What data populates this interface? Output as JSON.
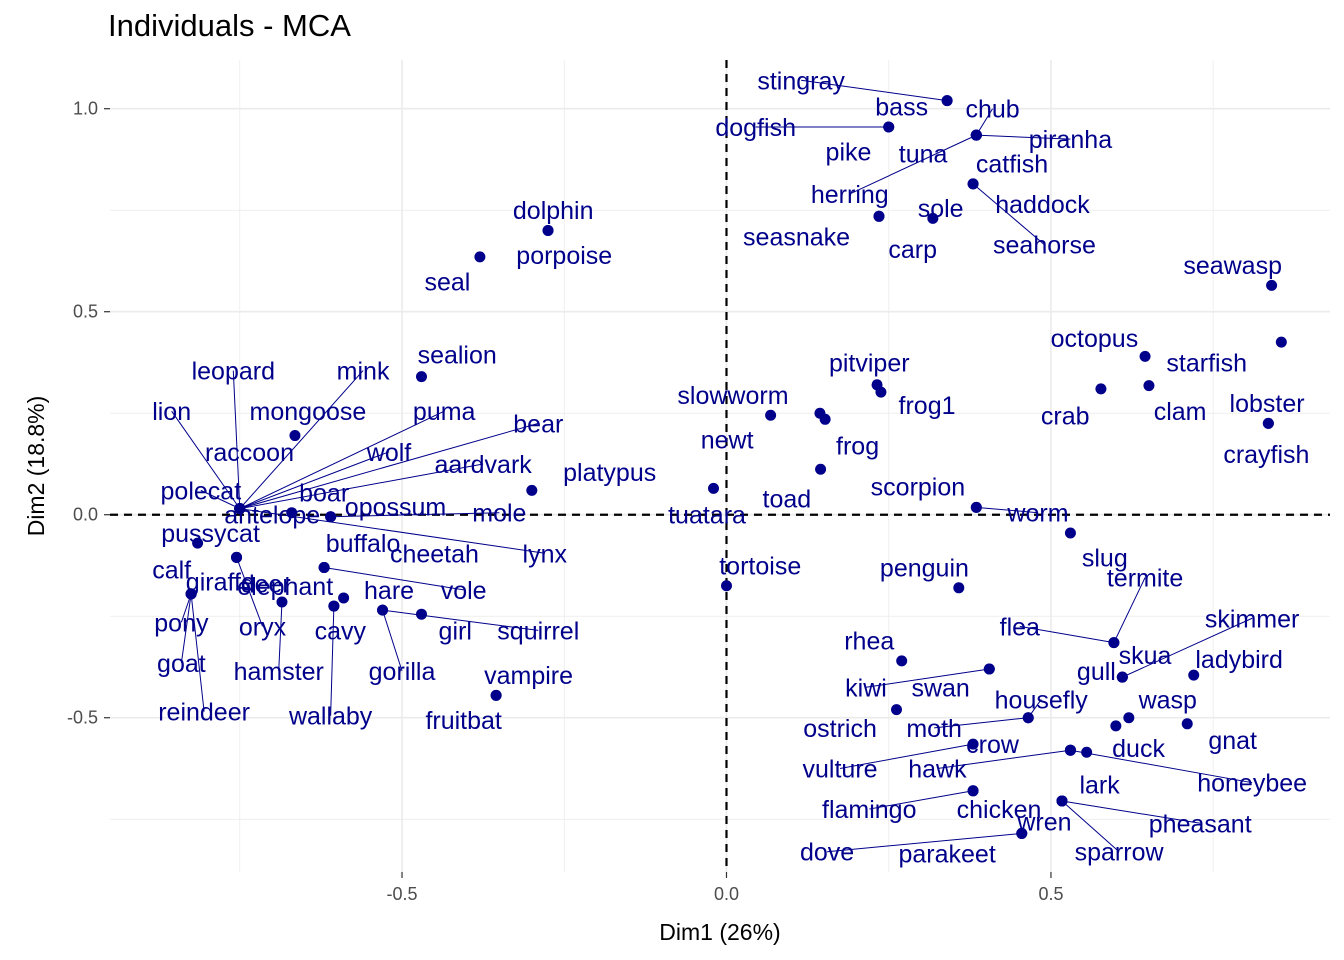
{
  "title": "Individuals - MCA",
  "colors": {
    "points": "#00008B",
    "grid": "#EBEBEB",
    "zero_line": "#000000",
    "tick_text": "#4D4D4D"
  },
  "chart_data": {
    "type": "scatter",
    "title": "Individuals - MCA",
    "xlabel": "Dim1 (26%)",
    "ylabel": "Dim2 (18.8%)",
    "xlim": [
      -0.95,
      0.93
    ],
    "ylim": [
      -0.88,
      1.12
    ],
    "x_ticks": [
      -0.5,
      0.0,
      0.5
    ],
    "x_tick_labels": [
      "-0.5",
      "0.0",
      "0.5"
    ],
    "y_ticks": [
      -0.5,
      0.0,
      0.5,
      1.0
    ],
    "y_tick_labels": [
      "-0.5",
      "0.0",
      "0.5",
      "1.0"
    ],
    "grid": true,
    "reference_lines": [
      0,
      0
    ],
    "points": [
      {
        "label": "stingray",
        "x": 0.34,
        "y": 1.02,
        "lx": 0.115,
        "ly": 1.07,
        "line": true
      },
      {
        "label": "bass",
        "x": 0.34,
        "y": 1.02,
        "lx": 0.27,
        "ly": 1.005,
        "line": false
      },
      {
        "label": "chub",
        "x": 0.385,
        "y": 0.935,
        "lx": 0.41,
        "ly": 1.0,
        "line": true
      },
      {
        "label": "piranha",
        "x": 0.385,
        "y": 0.935,
        "lx": 0.53,
        "ly": 0.925,
        "line": true
      },
      {
        "label": "dogfish",
        "x": 0.25,
        "y": 0.955,
        "lx": 0.045,
        "ly": 0.955,
        "line": true
      },
      {
        "label": "pike",
        "x": 0.25,
        "y": 0.955,
        "lx": 0.188,
        "ly": 0.895,
        "line": false
      },
      {
        "label": "tuna",
        "x": 0.385,
        "y": 0.935,
        "lx": 0.303,
        "ly": 0.89,
        "line": false
      },
      {
        "label": "catfish",
        "x": 0.385,
        "y": 0.935,
        "lx": 0.44,
        "ly": 0.865,
        "line": false
      },
      {
        "label": "herring",
        "x": 0.385,
        "y": 0.935,
        "lx": 0.19,
        "ly": 0.79,
        "line": true
      },
      {
        "label": "haddock",
        "x": 0.38,
        "y": 0.815,
        "lx": 0.487,
        "ly": 0.765,
        "line": false
      },
      {
        "label": "sole",
        "x": 0.318,
        "y": 0.73,
        "lx": 0.33,
        "ly": 0.755,
        "line": false
      },
      {
        "label": "seahorse",
        "x": 0.38,
        "y": 0.815,
        "lx": 0.49,
        "ly": 0.665,
        "line": true
      },
      {
        "label": "seasnake",
        "x": 0.235,
        "y": 0.735,
        "lx": 0.108,
        "ly": 0.685,
        "line": false
      },
      {
        "label": "carp",
        "x": 0.235,
        "y": 0.735,
        "lx": 0.287,
        "ly": 0.655,
        "line": false
      },
      {
        "label": "dolphin",
        "x": -0.275,
        "y": 0.7,
        "lx": -0.267,
        "ly": 0.75,
        "line": false
      },
      {
        "label": "porpoise",
        "x": -0.275,
        "y": 0.7,
        "lx": -0.25,
        "ly": 0.64,
        "line": false
      },
      {
        "label": "seal",
        "x": -0.38,
        "y": 0.635,
        "lx": -0.43,
        "ly": 0.575,
        "line": false
      },
      {
        "label": "seawasp",
        "x": 0.84,
        "y": 0.565,
        "lx": 0.78,
        "ly": 0.615,
        "line": false
      },
      {
        "label": "octopus",
        "x": 0.645,
        "y": 0.39,
        "lx": 0.567,
        "ly": 0.435,
        "line": false
      },
      {
        "label": "starfish",
        "x": 0.855,
        "y": 0.425,
        "lx": 0.74,
        "ly": 0.375,
        "line": false
      },
      {
        "label": "crab",
        "x": 0.577,
        "y": 0.31,
        "lx": 0.522,
        "ly": 0.245,
        "line": false
      },
      {
        "label": "clam",
        "x": 0.651,
        "y": 0.318,
        "lx": 0.699,
        "ly": 0.255,
        "line": false
      },
      {
        "label": "lobster",
        "x": 0.835,
        "y": 0.225,
        "lx": 0.833,
        "ly": 0.275,
        "line": false
      },
      {
        "label": "crayfish",
        "x": 0.835,
        "y": 0.225,
        "lx": 0.832,
        "ly": 0.15,
        "line": false
      },
      {
        "label": "pitviper",
        "x": 0.232,
        "y": 0.32,
        "lx": 0.22,
        "ly": 0.375,
        "line": false
      },
      {
        "label": "frog1",
        "x": 0.238,
        "y": 0.302,
        "lx": 0.309,
        "ly": 0.27,
        "line": false
      },
      {
        "label": "slowworm",
        "x": 0.068,
        "y": 0.245,
        "lx": 0.01,
        "ly": 0.295,
        "line": false
      },
      {
        "label": "newt",
        "x": 0.144,
        "y": 0.25,
        "lx": 0.001,
        "ly": 0.185,
        "line": false
      },
      {
        "label": "frog",
        "x": 0.152,
        "y": 0.235,
        "lx": 0.202,
        "ly": 0.17,
        "line": false
      },
      {
        "label": "toad",
        "x": 0.145,
        "y": 0.112,
        "lx": 0.093,
        "ly": 0.04,
        "line": false
      },
      {
        "label": "scorpion",
        "x": 0.385,
        "y": 0.018,
        "lx": 0.295,
        "ly": 0.07,
        "line": false
      },
      {
        "label": "worm",
        "x": 0.385,
        "y": 0.018,
        "lx": 0.48,
        "ly": 0.005,
        "line": true
      },
      {
        "label": "slug",
        "x": 0.53,
        "y": -0.045,
        "lx": 0.583,
        "ly": -0.105,
        "line": false
      },
      {
        "label": "tuatara",
        "x": -0.02,
        "y": 0.065,
        "lx": -0.03,
        "ly": -0.0,
        "line": false
      },
      {
        "label": "tortoise",
        "x": 0.0,
        "y": -0.175,
        "lx": 0.052,
        "ly": -0.125,
        "line": false
      },
      {
        "label": "penguin",
        "x": 0.358,
        "y": -0.18,
        "lx": 0.305,
        "ly": -0.13,
        "line": false
      },
      {
        "label": "platypus",
        "x": -0.3,
        "y": 0.06,
        "lx": -0.18,
        "ly": 0.105,
        "line": false
      },
      {
        "label": "sealion",
        "x": -0.47,
        "y": 0.34,
        "lx": -0.415,
        "ly": 0.395,
        "line": false
      },
      {
        "label": "leopard",
        "x": -0.75,
        "y": 0.015,
        "lx": -0.76,
        "ly": 0.355,
        "line": true
      },
      {
        "label": "mink",
        "x": -0.75,
        "y": 0.015,
        "lx": -0.56,
        "ly": 0.355,
        "line": true
      },
      {
        "label": "lion",
        "x": -0.75,
        "y": 0.015,
        "lx": -0.855,
        "ly": 0.255,
        "line": true
      },
      {
        "label": "mongoose",
        "x": -0.665,
        "y": 0.195,
        "lx": -0.645,
        "ly": 0.255,
        "line": false
      },
      {
        "label": "puma",
        "x": -0.75,
        "y": 0.015,
        "lx": -0.435,
        "ly": 0.255,
        "line": true
      },
      {
        "label": "bear",
        "x": -0.75,
        "y": 0.015,
        "lx": -0.29,
        "ly": 0.225,
        "line": true
      },
      {
        "label": "raccoon",
        "x": -0.75,
        "y": 0.015,
        "lx": -0.735,
        "ly": 0.155,
        "line": false
      },
      {
        "label": "wolf",
        "x": -0.75,
        "y": 0.015,
        "lx": -0.52,
        "ly": 0.155,
        "line": true
      },
      {
        "label": "aardvark",
        "x": -0.75,
        "y": 0.015,
        "lx": -0.375,
        "ly": 0.125,
        "line": true
      },
      {
        "label": "polecat",
        "x": -0.75,
        "y": 0.015,
        "lx": -0.81,
        "ly": 0.06,
        "line": true
      },
      {
        "label": "boar",
        "x": -0.67,
        "y": 0.005,
        "lx": -0.62,
        "ly": 0.055,
        "line": false
      },
      {
        "label": "opossum",
        "x": -0.61,
        "y": -0.005,
        "lx": -0.51,
        "ly": 0.02,
        "line": false
      },
      {
        "label": "mole",
        "x": -0.61,
        "y": -0.005,
        "lx": -0.35,
        "ly": 0.005,
        "line": true
      },
      {
        "label": "pussycat",
        "x": -0.815,
        "y": -0.07,
        "lx": -0.795,
        "ly": -0.045,
        "line": false
      },
      {
        "label": "antelope",
        "x": -0.755,
        "y": -0.105,
        "lx": -0.7,
        "ly": 0.0,
        "line": false
      },
      {
        "label": "buffalo",
        "x": -0.62,
        "y": -0.13,
        "lx": -0.56,
        "ly": -0.07,
        "line": false
      },
      {
        "label": "cheetah",
        "x": -0.75,
        "y": 0.015,
        "lx": -0.45,
        "ly": -0.095,
        "line": false
      },
      {
        "label": "lynx",
        "x": -0.75,
        "y": 0.015,
        "lx": -0.28,
        "ly": -0.095,
        "line": true
      },
      {
        "label": "calf",
        "x": -0.825,
        "y": -0.195,
        "lx": -0.855,
        "ly": -0.135,
        "line": false
      },
      {
        "label": "giraffe",
        "x": -0.825,
        "y": -0.195,
        "lx": -0.78,
        "ly": -0.165,
        "line": false
      },
      {
        "label": "deer",
        "x": -0.755,
        "y": -0.105,
        "lx": -0.71,
        "ly": -0.17,
        "line": false
      },
      {
        "label": "elephant",
        "x": -0.62,
        "y": -0.13,
        "lx": -0.68,
        "ly": -0.175,
        "line": false
      },
      {
        "label": "hare",
        "x": -0.59,
        "y": -0.205,
        "lx": -0.52,
        "ly": -0.185,
        "line": false
      },
      {
        "label": "vole",
        "x": -0.62,
        "y": -0.13,
        "lx": -0.405,
        "ly": -0.185,
        "line": true
      },
      {
        "label": "pony",
        "x": -0.825,
        "y": -0.195,
        "lx": -0.84,
        "ly": -0.265,
        "line": true
      },
      {
        "label": "oryx",
        "x": -0.755,
        "y": -0.105,
        "lx": -0.715,
        "ly": -0.275,
        "line": true
      },
      {
        "label": "cavy",
        "x": -0.605,
        "y": -0.225,
        "lx": -0.595,
        "ly": -0.285,
        "line": false
      },
      {
        "label": "girl",
        "x": -0.47,
        "y": -0.245,
        "lx": -0.418,
        "ly": -0.285,
        "line": false
      },
      {
        "label": "squirrel",
        "x": -0.53,
        "y": -0.235,
        "lx": -0.29,
        "ly": -0.285,
        "line": true
      },
      {
        "label": "goat",
        "x": -0.825,
        "y": -0.195,
        "lx": -0.84,
        "ly": -0.365,
        "line": true
      },
      {
        "label": "hamster",
        "x": -0.685,
        "y": -0.215,
        "lx": -0.69,
        "ly": -0.385,
        "line": true
      },
      {
        "label": "gorilla",
        "x": -0.53,
        "y": -0.235,
        "lx": -0.5,
        "ly": -0.385,
        "line": true
      },
      {
        "label": "vampire",
        "x": -0.355,
        "y": -0.445,
        "lx": -0.305,
        "ly": -0.395,
        "line": false
      },
      {
        "label": "reindeer",
        "x": -0.825,
        "y": -0.195,
        "lx": -0.805,
        "ly": -0.485,
        "line": true
      },
      {
        "label": "wallaby",
        "x": -0.605,
        "y": -0.225,
        "lx": -0.61,
        "ly": -0.495,
        "line": true
      },
      {
        "label": "fruitbat",
        "x": -0.355,
        "y": -0.445,
        "lx": -0.405,
        "ly": -0.505,
        "line": false
      },
      {
        "label": "termite",
        "x": 0.597,
        "y": -0.315,
        "lx": 0.645,
        "ly": -0.155,
        "line": true
      },
      {
        "label": "flea",
        "x": 0.597,
        "y": -0.315,
        "lx": 0.452,
        "ly": -0.275,
        "line": true
      },
      {
        "label": "skimmer",
        "x": 0.61,
        "y": -0.4,
        "lx": 0.81,
        "ly": -0.255,
        "line": true
      },
      {
        "label": "skua",
        "x": 0.61,
        "y": -0.4,
        "lx": 0.645,
        "ly": -0.345,
        "line": false
      },
      {
        "label": "rhea",
        "x": 0.27,
        "y": -0.36,
        "lx": 0.22,
        "ly": -0.31,
        "line": false
      },
      {
        "label": "gull",
        "x": 0.61,
        "y": -0.4,
        "lx": 0.57,
        "ly": -0.385,
        "line": false
      },
      {
        "label": "ladybird",
        "x": 0.72,
        "y": -0.395,
        "lx": 0.79,
        "ly": -0.355,
        "line": false
      },
      {
        "label": "kiwi",
        "x": 0.405,
        "y": -0.38,
        "lx": 0.215,
        "ly": -0.425,
        "line": true
      },
      {
        "label": "swan",
        "x": 0.405,
        "y": -0.38,
        "lx": 0.33,
        "ly": -0.425,
        "line": false
      },
      {
        "label": "housefly",
        "x": 0.465,
        "y": -0.5,
        "lx": 0.485,
        "ly": -0.455,
        "line": true
      },
      {
        "label": "wasp",
        "x": 0.62,
        "y": -0.5,
        "lx": 0.68,
        "ly": -0.455,
        "line": false
      },
      {
        "label": "ostrich",
        "x": 0.262,
        "y": -0.48,
        "lx": 0.175,
        "ly": -0.525,
        "line": false
      },
      {
        "label": "moth",
        "x": 0.465,
        "y": -0.5,
        "lx": 0.32,
        "ly": -0.525,
        "line": true
      },
      {
        "label": "gnat",
        "x": 0.71,
        "y": -0.515,
        "lx": 0.78,
        "ly": -0.555,
        "line": false
      },
      {
        "label": "crow",
        "x": 0.53,
        "y": -0.58,
        "lx": 0.41,
        "ly": -0.565,
        "line": false
      },
      {
        "label": "duck",
        "x": 0.6,
        "y": -0.52,
        "lx": 0.635,
        "ly": -0.575,
        "line": false
      },
      {
        "label": "vulture",
        "x": 0.38,
        "y": -0.565,
        "lx": 0.175,
        "ly": -0.625,
        "line": true
      },
      {
        "label": "hawk",
        "x": 0.53,
        "y": -0.58,
        "lx": 0.325,
        "ly": -0.625,
        "line": true
      },
      {
        "label": "honeybee",
        "x": 0.53,
        "y": -0.58,
        "lx": 0.81,
        "ly": -0.66,
        "line": true
      },
      {
        "label": "lark",
        "x": 0.555,
        "y": -0.585,
        "lx": 0.575,
        "ly": -0.665,
        "line": false
      },
      {
        "label": "flamingo",
        "x": 0.38,
        "y": -0.68,
        "lx": 0.22,
        "ly": -0.725,
        "line": true
      },
      {
        "label": "chicken",
        "x": 0.38,
        "y": -0.68,
        "lx": 0.42,
        "ly": -0.725,
        "line": false
      },
      {
        "label": "wren",
        "x": 0.517,
        "y": -0.705,
        "lx": 0.49,
        "ly": -0.755,
        "line": false
      },
      {
        "label": "pheasant",
        "x": 0.517,
        "y": -0.705,
        "lx": 0.73,
        "ly": -0.76,
        "line": true
      },
      {
        "label": "dove",
        "x": 0.455,
        "y": -0.785,
        "lx": 0.155,
        "ly": -0.83,
        "line": true
      },
      {
        "label": "parakeet",
        "x": 0.455,
        "y": -0.785,
        "lx": 0.34,
        "ly": -0.835,
        "line": false
      },
      {
        "label": "sparrow",
        "x": 0.517,
        "y": -0.705,
        "lx": 0.605,
        "ly": -0.83,
        "line": true
      }
    ]
  }
}
